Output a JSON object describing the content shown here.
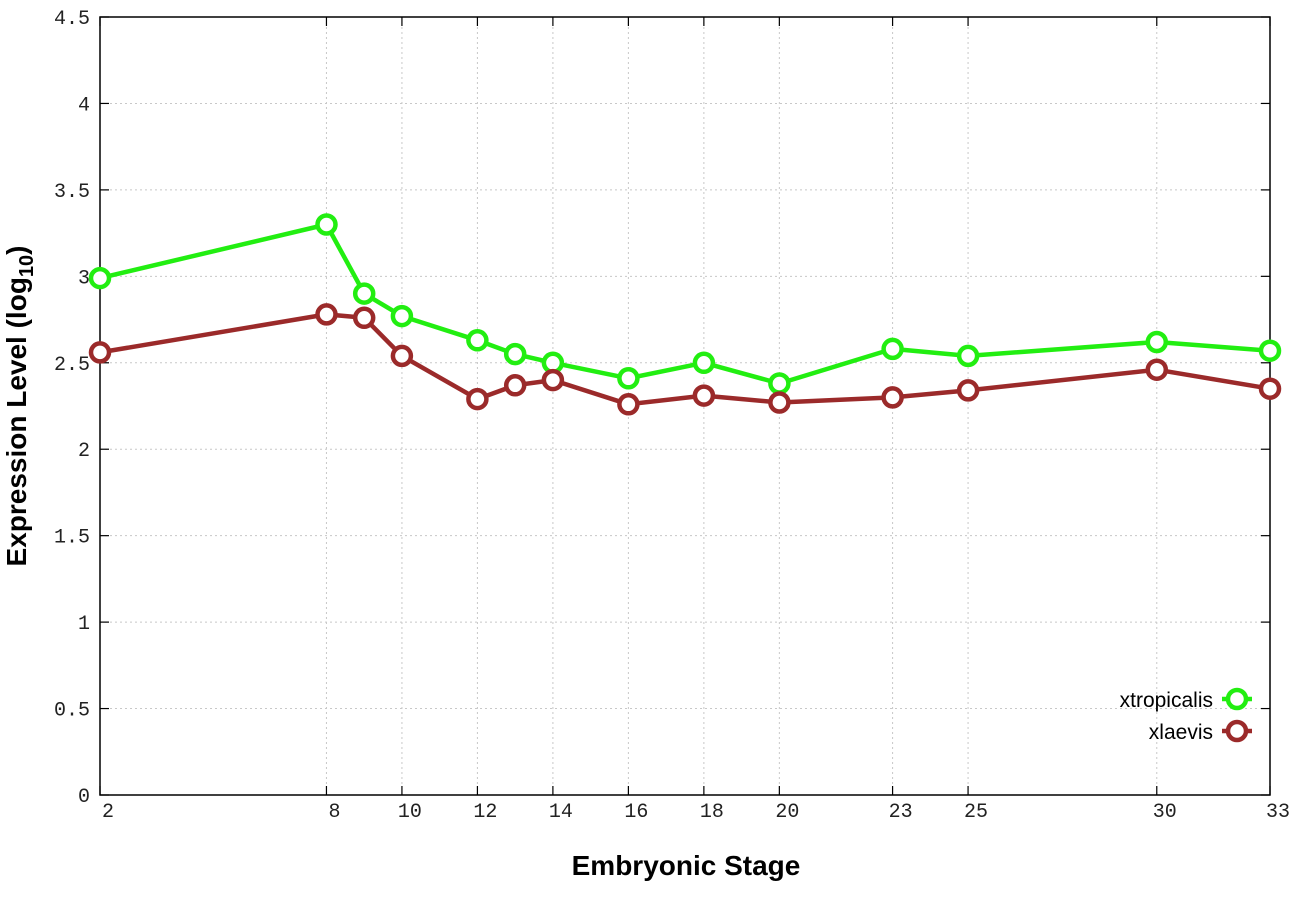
{
  "chart_data": {
    "type": "line",
    "title": "",
    "xlabel": "Embryonic Stage",
    "ylabel": {
      "main": "Expression Level (log",
      "sub": "10",
      "close": ")"
    },
    "x_ticks": [
      2,
      8,
      10,
      12,
      14,
      16,
      18,
      20,
      23,
      25,
      30,
      33
    ],
    "y_ticks": [
      "0",
      "0.5",
      "1",
      "1.5",
      "2",
      "2.5",
      "3",
      "3.5",
      "4",
      "4.5"
    ],
    "xlim": [
      2,
      33
    ],
    "ylim": [
      0,
      4.5
    ],
    "grid": true,
    "legend_position": "bottom-right",
    "x": [
      2,
      8,
      9,
      10,
      12,
      13,
      14,
      16,
      18,
      20,
      23,
      25,
      30,
      33
    ],
    "series": [
      {
        "name": "xtropicalis",
        "color": "#22ee11",
        "values": [
          2.99,
          3.3,
          2.9,
          2.77,
          2.63,
          2.55,
          2.5,
          2.41,
          2.5,
          2.38,
          2.58,
          2.54,
          2.62,
          2.57
        ]
      },
      {
        "name": "xlaevis",
        "color": "#9b2a2a",
        "values": [
          2.56,
          2.78,
          2.76,
          2.54,
          2.29,
          2.37,
          2.4,
          2.26,
          2.31,
          2.27,
          2.3,
          2.34,
          2.46,
          2.35
        ]
      }
    ]
  }
}
